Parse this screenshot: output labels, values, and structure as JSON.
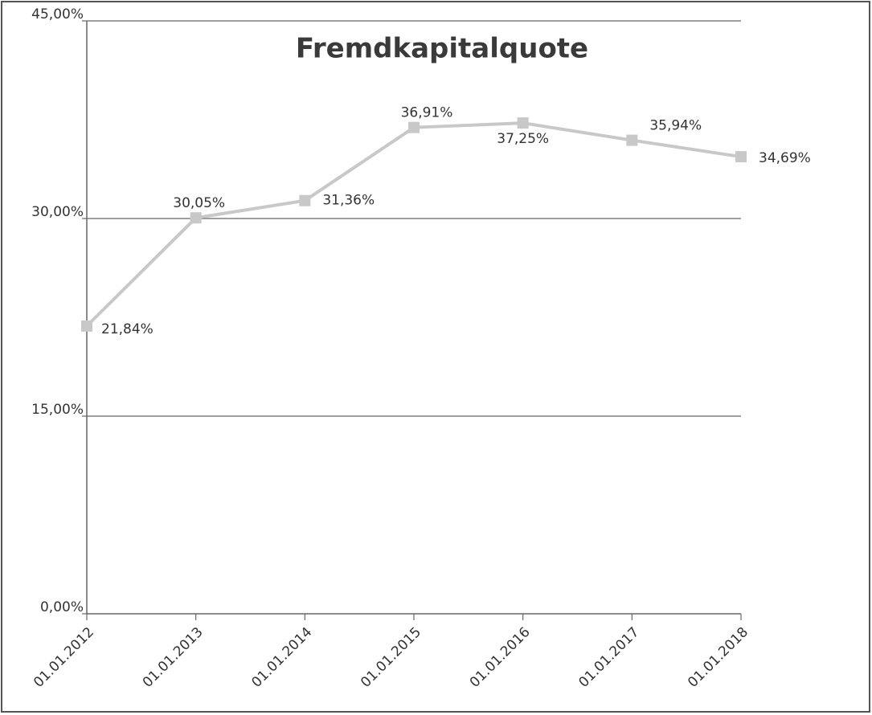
{
  "chart_data": {
    "type": "line",
    "title": "Fremdkapitalquote",
    "categories": [
      "01.01.2012",
      "01.01.2013",
      "01.01.2014",
      "01.01.2015",
      "01.01.2016",
      "01.01.2017",
      "01.01.2018"
    ],
    "series": [
      {
        "name": "Fremdkapitalquote",
        "color": "#c8c8c8",
        "values": [
          21.84,
          30.05,
          31.36,
          36.91,
          37.25,
          35.94,
          34.69
        ],
        "value_labels": [
          "21,84%",
          "30,05%",
          "31,36%",
          "36,91%",
          "37,25%",
          "35,94%",
          "34,69%"
        ]
      }
    ],
    "ylim": [
      0,
      45
    ],
    "yticks": [
      {
        "value": 0,
        "label": "0,00%"
      },
      {
        "value": 15,
        "label": "15,00%"
      },
      {
        "value": 30,
        "label": "30,00%"
      },
      {
        "value": 45,
        "label": "45,00%"
      }
    ],
    "grid": true
  }
}
